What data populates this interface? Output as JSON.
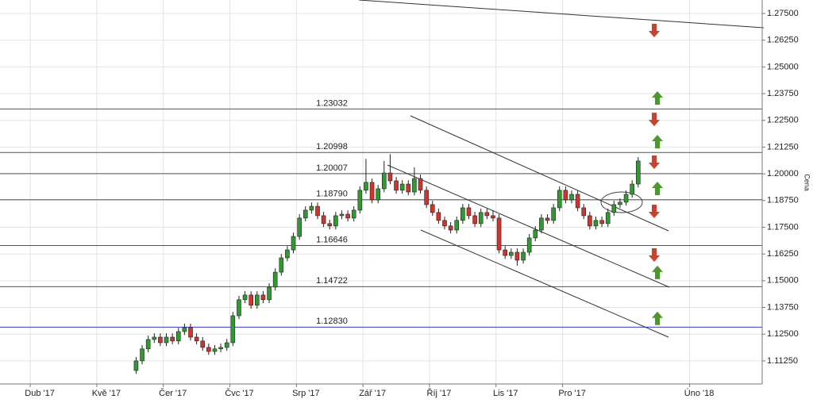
{
  "chart_data": {
    "type": "candlestick",
    "y_label": "Cena",
    "grid": true,
    "up_color": "#2f9a2f",
    "down_color": "#d0342c",
    "ylim": [
      1.1017,
      1.2813
    ],
    "yticks": [
      {
        "value": 1.1125,
        "label": "1.11250"
      },
      {
        "value": 1.125,
        "label": "1.12500"
      },
      {
        "value": 1.1375,
        "label": "1.13750"
      },
      {
        "value": 1.15,
        "label": "1.15000"
      },
      {
        "value": 1.1625,
        "label": "1.16250"
      },
      {
        "value": 1.175,
        "label": "1.17500"
      },
      {
        "value": 1.1875,
        "label": "1.18750"
      },
      {
        "value": 1.2,
        "label": "1.20000"
      },
      {
        "value": 1.2125,
        "label": "1.21250"
      },
      {
        "value": 1.225,
        "label": "1.22500"
      },
      {
        "value": 1.2375,
        "label": "1.23750"
      },
      {
        "value": 1.25,
        "label": "1.25000"
      },
      {
        "value": 1.2625,
        "label": "1.26250"
      },
      {
        "value": 1.275,
        "label": "1.27500"
      }
    ],
    "categories": [
      null,
      null,
      null,
      null,
      null,
      "Dub '17",
      null,
      null,
      null,
      null,
      null,
      null,
      null,
      null,
      null,
      null,
      "Kvě '17",
      null,
      null,
      null,
      null,
      null,
      null,
      null,
      null,
      null,
      null,
      "Čer '17",
      null,
      null,
      null,
      null,
      null,
      null,
      null,
      null,
      null,
      null,
      "Čvc '17",
      null,
      null,
      null,
      null,
      null,
      null,
      null,
      null,
      null,
      null,
      "Srp '17",
      null,
      null,
      null,
      null,
      null,
      null,
      null,
      null,
      null,
      null,
      "Zář '17",
      null,
      null,
      null,
      null,
      null,
      null,
      null,
      null,
      null,
      null,
      "Říj '17",
      null,
      null,
      null,
      null,
      null,
      null,
      null,
      null,
      null,
      null,
      "Lis '17",
      null,
      null,
      null,
      null,
      null,
      null,
      null,
      null,
      null,
      null,
      "Pro '17",
      null,
      null,
      null,
      null,
      null,
      null,
      null,
      null,
      null,
      null,
      null,
      null,
      null,
      null,
      null,
      null,
      null,
      null,
      null,
      null,
      "Úno '18",
      null,
      null,
      null,
      null,
      null,
      null,
      null,
      null,
      null,
      null,
      null
    ],
    "open": [
      null,
      null,
      null,
      null,
      null,
      null,
      null,
      null,
      null,
      null,
      null,
      null,
      null,
      null,
      null,
      null,
      null,
      null,
      null,
      null,
      null,
      null,
      1.108,
      1.1125,
      1.1181,
      1.1225,
      1.1236,
      1.121,
      1.1236,
      1.1218,
      1.1262,
      1.1281,
      1.1236,
      1.1218,
      1.1188,
      1.1169,
      1.1181,
      1.1188,
      1.121,
      1.1336,
      1.1411,
      1.1433,
      1.1385,
      1.1433,
      1.1411,
      1.147,
      1.154,
      1.1607,
      1.1644,
      1.1707,
      1.1793,
      1.183,
      1.1848,
      1.1804,
      1.1767,
      1.1756,
      1.1804,
      1.1811,
      1.1793,
      1.183,
      1.1923,
      1.196,
      1.1878,
      1.193,
      1.2004,
      1.1967,
      1.1923,
      1.1952,
      1.1915,
      1.1978,
      1.1923,
      1.1856,
      1.1819,
      1.1782,
      1.1756,
      1.1737,
      1.1782,
      1.1841,
      1.1804,
      1.1767,
      1.1819,
      1.1804,
      1.1793,
      1.1644,
      1.1618,
      1.1633,
      1.1596,
      1.1633,
      1.17,
      1.1737,
      1.1793,
      1.1782,
      1.1841,
      1.1923,
      1.1878,
      1.1904,
      1.1841,
      1.1804,
      1.1756,
      1.1782,
      1.1767,
      1.1819,
      1.1856,
      1.1867,
      1.1904,
      1.1952,
      null,
      null,
      null,
      null,
      null,
      null,
      null,
      null,
      null,
      null,
      null,
      null,
      null,
      null,
      null,
      null,
      null,
      null,
      null,
      null
    ],
    "high": [
      null,
      null,
      null,
      null,
      null,
      null,
      null,
      null,
      null,
      null,
      null,
      null,
      null,
      null,
      null,
      null,
      null,
      null,
      null,
      null,
      null,
      null,
      1.1143,
      1.1199,
      1.1243,
      1.1254,
      1.1254,
      1.1254,
      1.1254,
      1.128,
      1.1299,
      1.1299,
      1.1254,
      1.1236,
      1.1206,
      1.1199,
      1.1206,
      1.1228,
      1.1354,
      1.1429,
      1.1451,
      1.1451,
      1.1451,
      1.1451,
      1.1488,
      1.1558,
      1.1625,
      1.1662,
      1.1725,
      1.1811,
      1.1848,
      1.1866,
      1.1866,
      1.1822,
      1.1785,
      1.1822,
      1.1829,
      1.1829,
      1.1848,
      1.1941,
      1.207,
      1.1978,
      1.1948,
      1.206,
      1.2092,
      1.1985,
      1.197,
      1.197,
      1.203,
      1.1996,
      1.1941,
      1.1874,
      1.1837,
      1.18,
      1.1774,
      1.18,
      1.1859,
      1.1859,
      1.1822,
      1.1837,
      1.1837,
      1.183,
      1.1811,
      1.1662,
      1.1651,
      1.1651,
      1.1651,
      1.1718,
      1.1755,
      1.1811,
      1.1811,
      1.1859,
      1.1941,
      1.1941,
      1.1922,
      1.1922,
      1.1859,
      1.1822,
      1.18,
      1.18,
      1.1837,
      1.1874,
      1.1885,
      1.1922,
      1.197,
      1.2078,
      null,
      null,
      null,
      null,
      null,
      null,
      null,
      null,
      null,
      null,
      null,
      null,
      null,
      null,
      null,
      null,
      null,
      null,
      null,
      null
    ],
    "low": [
      null,
      null,
      null,
      null,
      null,
      null,
      null,
      null,
      null,
      null,
      null,
      null,
      null,
      null,
      null,
      null,
      null,
      null,
      null,
      null,
      null,
      null,
      1.1064,
      1.1109,
      1.1165,
      1.1209,
      1.1194,
      1.1194,
      1.1202,
      1.1202,
      1.1246,
      1.122,
      1.1202,
      1.1172,
      1.1153,
      1.1153,
      1.1165,
      1.1172,
      1.1194,
      1.132,
      1.1395,
      1.1369,
      1.1369,
      1.1395,
      1.1395,
      1.1454,
      1.1524,
      1.1591,
      1.1628,
      1.1691,
      1.1777,
      1.1814,
      1.1788,
      1.1751,
      1.174,
      1.174,
      1.1788,
      1.1777,
      1.1777,
      1.1814,
      1.1907,
      1.1862,
      1.1862,
      1.1914,
      1.1951,
      1.1907,
      1.1907,
      1.1899,
      1.1899,
      1.1907,
      1.184,
      1.1803,
      1.1766,
      1.174,
      1.1721,
      1.1721,
      1.1766,
      1.1788,
      1.1751,
      1.1751,
      1.1788,
      1.1777,
      1.1628,
      1.1602,
      1.1602,
      1.157,
      1.158,
      1.1617,
      1.1684,
      1.1721,
      1.1766,
      1.1766,
      1.1825,
      1.1862,
      1.1862,
      1.1825,
      1.1788,
      1.174,
      1.174,
      1.1751,
      1.1751,
      1.1803,
      1.184,
      1.1851,
      1.1888,
      1.1936,
      null,
      null,
      null,
      null,
      null,
      null,
      null,
      null,
      null,
      null,
      null,
      null,
      null,
      null,
      null,
      null,
      null,
      null,
      null,
      null
    ],
    "close": [
      null,
      null,
      null,
      null,
      null,
      null,
      null,
      null,
      null,
      null,
      null,
      null,
      null,
      null,
      null,
      null,
      null,
      null,
      null,
      null,
      null,
      null,
      1.1125,
      1.1181,
      1.1225,
      1.1236,
      1.121,
      1.1236,
      1.1218,
      1.1262,
      1.1281,
      1.1236,
      1.1218,
      1.1188,
      1.1169,
      1.1181,
      1.1188,
      1.121,
      1.1336,
      1.1411,
      1.1433,
      1.1385,
      1.1433,
      1.1411,
      1.147,
      1.154,
      1.1607,
      1.1644,
      1.1707,
      1.1793,
      1.183,
      1.1848,
      1.1804,
      1.1767,
      1.1756,
      1.1804,
      1.1811,
      1.1793,
      1.183,
      1.1923,
      1.196,
      1.1878,
      1.193,
      1.2004,
      1.1967,
      1.1923,
      1.1952,
      1.1915,
      1.1978,
      1.1923,
      1.1856,
      1.1819,
      1.1782,
      1.1756,
      1.1737,
      1.1782,
      1.1841,
      1.1804,
      1.1767,
      1.1819,
      1.1804,
      1.1793,
      1.1644,
      1.1618,
      1.1633,
      1.1596,
      1.1633,
      1.17,
      1.1737,
      1.1793,
      1.1782,
      1.1841,
      1.1923,
      1.1878,
      1.1904,
      1.1841,
      1.1804,
      1.1756,
      1.1782,
      1.1767,
      1.1819,
      1.1856,
      1.1867,
      1.1904,
      1.1952,
      1.206,
      null,
      null,
      null,
      null,
      null,
      null,
      null,
      null,
      null,
      null,
      null,
      null,
      null,
      null,
      null,
      null,
      null,
      null,
      null,
      null
    ],
    "levels": [
      {
        "value": 1.23032,
        "label": "1.23032",
        "color": "#555555"
      },
      {
        "value": 1.20998,
        "label": "1.20998",
        "color": "#555555"
      },
      {
        "value": 1.20007,
        "label": "1.20007",
        "color": "#555555"
      },
      {
        "value": 1.1879,
        "label": "1.18790",
        "color": "#555555"
      },
      {
        "value": 1.16646,
        "label": "1.16646",
        "color": "#555555"
      },
      {
        "value": 1.14722,
        "label": "1.14722",
        "color": "#555555"
      },
      {
        "value": 1.1283,
        "label": "1.12830",
        "color": "#3a3ad6"
      }
    ],
    "signals": [
      {
        "direction": "down",
        "value": 1.2672,
        "color": "#c8432f"
      },
      {
        "direction": "up",
        "value": 1.2353,
        "color": "#4a9a2a"
      },
      {
        "direction": "down",
        "value": 1.2256,
        "color": "#c8432f"
      },
      {
        "direction": "up",
        "value": 1.2149,
        "color": "#4a9a2a"
      },
      {
        "direction": "down",
        "value": 1.2056,
        "color": "#c8432f"
      },
      {
        "direction": "up",
        "value": 1.193,
        "color": "#4a9a2a"
      },
      {
        "direction": "down",
        "value": 1.1826,
        "color": "#c8432f"
      },
      {
        "direction": "down",
        "value": 1.1622,
        "color": "#c8432f"
      },
      {
        "direction": "up",
        "value": 1.1537,
        "color": "#4a9a2a"
      },
      {
        "direction": "up",
        "value": 1.1322,
        "color": "#4a9a2a"
      }
    ]
  }
}
